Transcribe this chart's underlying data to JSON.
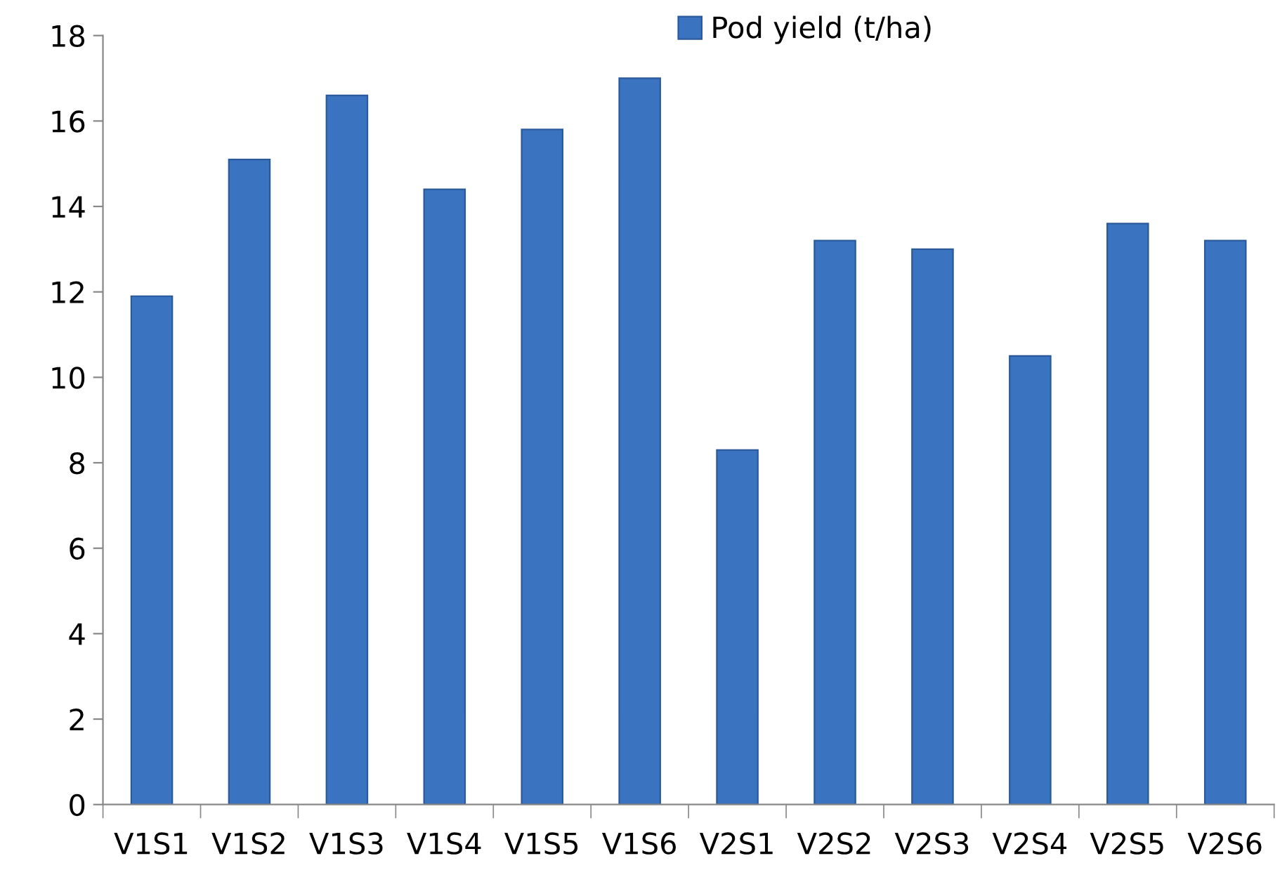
{
  "chart_data": {
    "type": "bar",
    "categories": [
      "V1S1",
      "V1S2",
      "V1S3",
      "V1S4",
      "V1S5",
      "V1S6",
      "V2S1",
      "V2S2",
      "V2S3",
      "V2S4",
      "V2S5",
      "V2S6"
    ],
    "series": [
      {
        "name": "Pod yield (t/ha)",
        "color": "#3a74c0",
        "values": [
          11.9,
          15.1,
          16.6,
          14.4,
          15.8,
          17.0,
          8.3,
          13.2,
          13.0,
          10.5,
          13.6,
          13.2
        ]
      }
    ],
    "ylim": [
      0,
      18
    ],
    "yticks": [
      0,
      2,
      4,
      6,
      8,
      10,
      12,
      14,
      16,
      18
    ],
    "grid": false,
    "legend": "top"
  }
}
